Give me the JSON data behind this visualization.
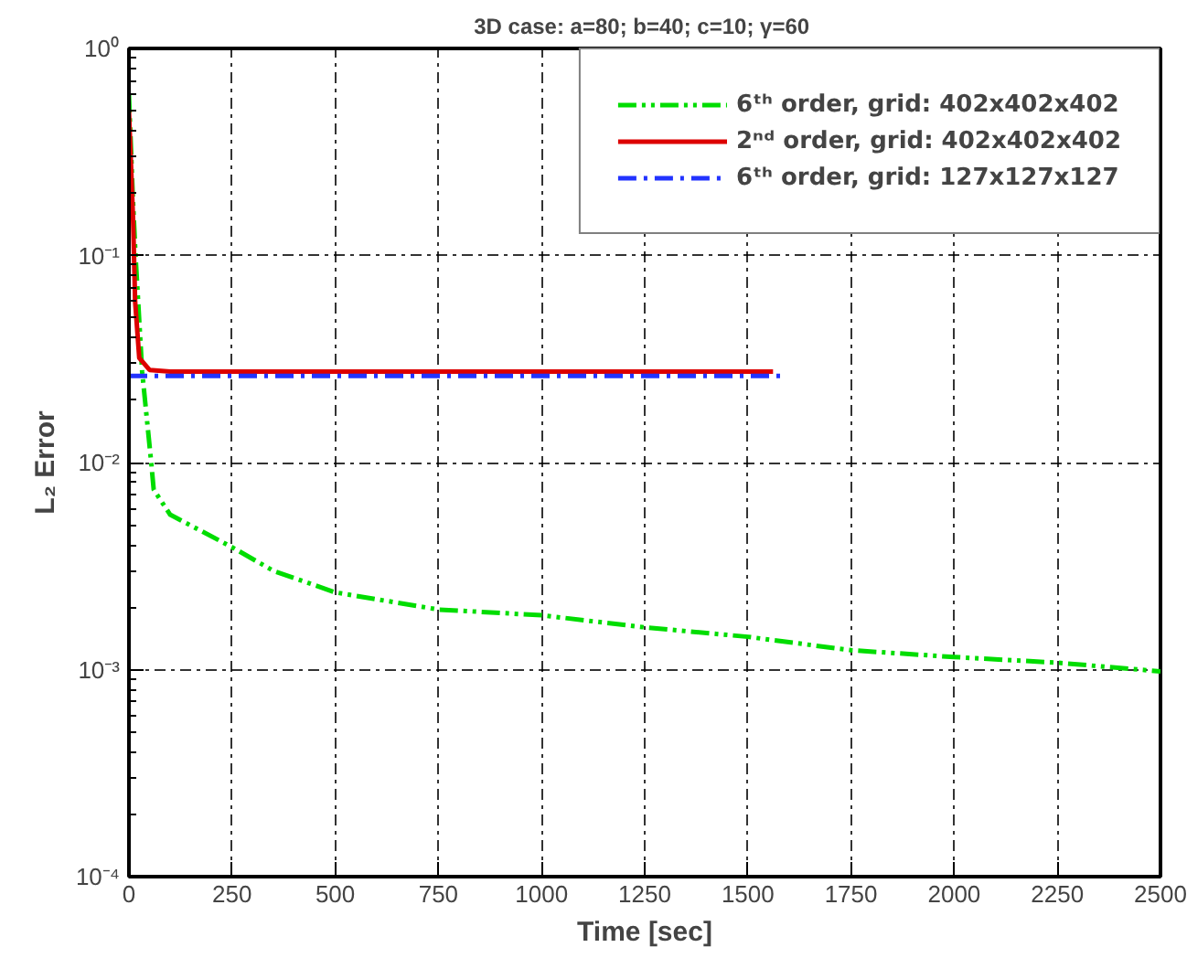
{
  "chart_data": {
    "type": "line",
    "title": "3D case: a=80; b=40; c=10;  γ=60",
    "xlabel": "Time [sec]",
    "ylabel": "L₂ Error",
    "xlim": [
      0,
      2500
    ],
    "xticks": [
      0,
      250,
      500,
      750,
      1000,
      1250,
      1500,
      1750,
      2000,
      2250,
      2500
    ],
    "ylim": [
      0.0001,
      1
    ],
    "yticks": [
      {
        "value": 0.0001,
        "label": "10⁻⁴"
      },
      {
        "value": 0.001,
        "label": "10⁻³"
      },
      {
        "value": 0.01,
        "label": "10⁻²"
      },
      {
        "value": 0.1,
        "label": "10⁻¹"
      },
      {
        "value": 1,
        "label": "10⁰"
      }
    ],
    "log": "y",
    "grid": true,
    "legend": "top right",
    "series": [
      {
        "name": "6ᵗʰ order, grid: 402x402x402",
        "color": "#00dd00",
        "line_style": "dashdotdot",
        "x": [
          0,
          9,
          16,
          32,
          54,
          60,
          100,
          250,
          350,
          500,
          750,
          1000,
          1250,
          1500,
          1750,
          2000,
          2250,
          2500
        ],
        "values": [
          0.6,
          0.2,
          0.1,
          0.0275,
          0.01,
          0.0074,
          0.0056,
          0.0039,
          0.003,
          0.00236,
          0.00195,
          0.00183,
          0.0016,
          0.00144,
          0.00124,
          0.00115,
          0.00108,
          0.00098
        ]
      },
      {
        "name": "2ⁿᵈ order, grid: 402x402x402",
        "color": "#dd0000",
        "line_style": "solid",
        "x": [
          0,
          10,
          15,
          25,
          50,
          100,
          1561
        ],
        "values": [
          0.5,
          0.15,
          0.06,
          0.032,
          0.028,
          0.0275,
          0.0275
        ]
      },
      {
        "name": "6ᵗʰ order, grid: 127x127x127",
        "color": "#2233ff",
        "line_style": "dashdot",
        "x": [
          0,
          1578
        ],
        "values": [
          0.0262,
          0.0262
        ]
      }
    ]
  }
}
